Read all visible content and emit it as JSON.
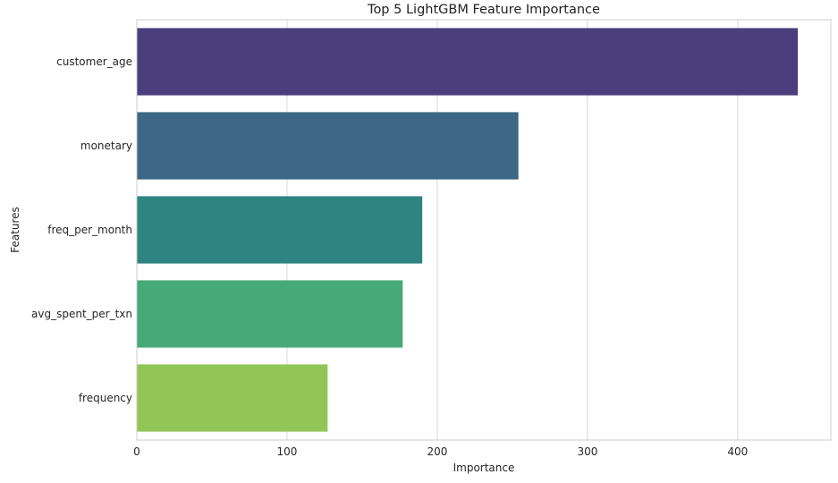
{
  "chart_data": {
    "type": "bar",
    "orientation": "horizontal",
    "title": "Top 5 LightGBM Feature Importance",
    "xlabel": "Importance",
    "ylabel": "Features",
    "categories": [
      "customer_age",
      "monetary",
      "freq_per_month",
      "avg_spent_per_txn",
      "frequency"
    ],
    "values": [
      440,
      254,
      190,
      177,
      127
    ],
    "colors": [
      "#4a3f7c",
      "#3d6785",
      "#2e8480",
      "#46a978",
      "#91c656"
    ],
    "xlim": [
      0,
      462
    ],
    "xticks": [
      0,
      100,
      200,
      300,
      400
    ],
    "grid": "vertical",
    "legend": "none"
  }
}
